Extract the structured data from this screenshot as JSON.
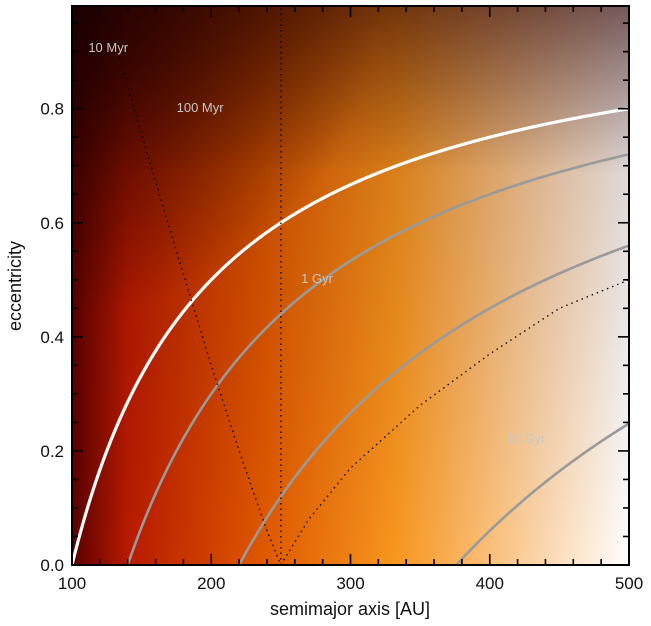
{
  "chart_data": {
    "type": "heatmap",
    "title": "",
    "xlabel": "semimajor axis [AU]",
    "ylabel": "eccentricity",
    "xlim": [
      100,
      500
    ],
    "ylim": [
      0,
      0.98
    ],
    "xticks": [
      100,
      200,
      300,
      400,
      500
    ],
    "yticks": [
      0.0,
      0.2,
      0.4,
      0.6,
      0.8
    ],
    "xtick_labels": [
      "100",
      "200",
      "300",
      "400",
      "500"
    ],
    "ytick_labels": [
      "0.0",
      "0.2",
      "0.4",
      "0.6",
      "0.8"
    ],
    "colormap": [
      "#5a0000",
      "#b81a00",
      "#e05a00",
      "#f8961e",
      "#fcd8b0",
      "#ffffff"
    ],
    "grid": false,
    "contours": [
      {
        "label": "10 Myr",
        "a0": 100,
        "color": "#ffffff",
        "label_pos": [
          126,
          0.905
        ]
      },
      {
        "label": "100 Myr",
        "a0": 140,
        "color": "#9a9a9a",
        "label_pos": [
          192,
          0.8
        ]
      },
      {
        "label": "1 Gyr",
        "a0": 220,
        "color": "#9a9a9a",
        "label_pos": [
          276,
          0.5
        ]
      },
      {
        "label": "10 Gyr",
        "a0": 376,
        "color": "#9a9a9a",
        "label_pos": [
          426,
          0.22
        ]
      }
    ],
    "dotted_lines": [
      {
        "x": [
          250,
          250
        ],
        "y": [
          0.0,
          0.98
        ]
      },
      {
        "x": [
          133,
          153,
          175,
          200,
          220,
          240,
          250
        ],
        "y": [
          0.9,
          0.73,
          0.55,
          0.35,
          0.2,
          0.06,
          0.0
        ]
      },
      {
        "x": [
          250,
          270,
          300,
          350,
          400,
          450,
          500
        ],
        "y": [
          0.0,
          0.08,
          0.17,
          0.28,
          0.37,
          0.45,
          0.5
        ]
      }
    ]
  }
}
